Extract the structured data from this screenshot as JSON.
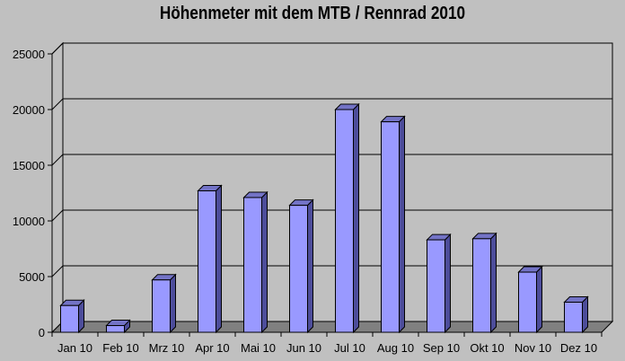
{
  "chart_data": {
    "type": "bar",
    "title": "Höhenmeter mit dem MTB / Rennrad 2010",
    "categories": [
      "Jan 10",
      "Feb 10",
      "Mrz 10",
      "Apr 10",
      "Mai 10",
      "Jun 10",
      "Jul 10",
      "Aug 10",
      "Sep 10",
      "Okt 10",
      "Nov 10",
      "Dez 10"
    ],
    "values": [
      2400,
      600,
      4700,
      12700,
      12100,
      11400,
      20000,
      18900,
      8300,
      8400,
      5400,
      2700
    ],
    "ylim": [
      0,
      25000
    ],
    "yticks": [
      "0",
      "5000",
      "10000",
      "15000",
      "20000",
      "25000"
    ],
    "grid": true,
    "legend": "none",
    "colors": {
      "bar_front": "#9999ff",
      "bar_side": "#4d4d9a",
      "bar_top": "#7373c6",
      "wall": "#c0c0c0",
      "floor": "#808080",
      "background": "#c0c0c0"
    }
  }
}
